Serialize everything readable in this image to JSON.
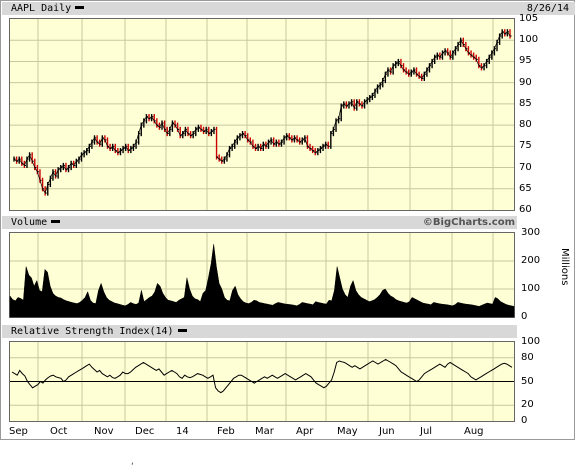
{
  "header": {
    "price_title": "AAPL Daily",
    "date": "8/26/14",
    "volume_title": "Volume",
    "brand": "©BigCharts.com",
    "rsi_title": "Relative Strength Index(14)",
    "volume_unit_label": "Millions",
    "footer_mark": "‘"
  },
  "chart_data": [
    {
      "type": "line",
      "panel": "price",
      "ylim": [
        60,
        105
      ],
      "yticks": [
        "105",
        "100",
        "95",
        "90",
        "85",
        "80",
        "75",
        "70",
        "65",
        "60"
      ],
      "x_labels": [
        "Sep",
        "Oct",
        "Nov",
        "Dec",
        "14",
        "Feb",
        "Mar",
        "Apr",
        "May",
        "Jun",
        "Jul",
        "Aug"
      ],
      "series": [
        {
          "values": [
            72,
            71.5,
            72,
            71,
            70.5,
            72,
            73,
            71.5,
            70,
            69,
            67,
            65,
            64,
            66,
            67.5,
            69,
            68,
            69.5,
            70,
            70.5,
            69.5,
            70,
            71,
            70.5,
            71.5,
            72,
            73,
            73.5,
            74,
            75,
            76,
            77,
            76,
            75.5,
            77,
            76.5,
            75,
            74.5,
            75,
            74,
            73.5,
            74,
            74.5,
            75,
            74,
            74.5,
            75,
            76,
            78,
            80,
            81,
            82,
            81.5,
            82,
            81,
            80,
            79.5,
            80.5,
            79,
            78,
            79,
            80.5,
            80,
            79,
            77.5,
            78,
            79,
            78,
            77.5,
            78,
            79,
            79.5,
            79,
            78.5,
            79,
            78,
            78.5,
            79,
            72.5,
            72,
            71.5,
            72,
            73,
            74.5,
            75,
            76,
            77,
            77.5,
            78,
            77.5,
            76.5,
            76,
            75,
            74.5,
            75,
            74.5,
            75.5,
            75,
            76,
            76.5,
            75.5,
            76,
            75.5,
            76,
            77,
            77.5,
            77,
            76.5,
            77,
            76.5,
            76,
            76.5,
            77,
            75,
            74.5,
            74,
            73.5,
            74,
            74.5,
            75,
            75.5,
            75,
            78,
            79,
            81,
            81.5,
            84.5,
            85,
            84.5,
            85,
            85.5,
            84,
            85.5,
            85,
            84.5,
            85.5,
            86,
            86.5,
            87,
            88,
            89,
            89.5,
            90.5,
            92,
            93,
            92.5,
            94,
            94.5,
            95,
            94,
            93,
            92.5,
            92,
            92.5,
            93,
            92,
            91.5,
            91,
            92,
            93,
            94,
            95,
            96,
            96.5,
            96,
            97,
            97.5,
            97,
            96,
            97,
            98,
            99,
            100,
            99,
            98,
            97,
            96.5,
            96,
            95.5,
            94,
            93.5,
            94,
            95,
            96,
            97,
            98,
            99.5,
            101,
            102,
            101.5,
            102,
            101
          ]
        }
      ]
    },
    {
      "type": "area",
      "panel": "volume",
      "ylabel": "Millions",
      "ylim": [
        0,
        300
      ],
      "yticks": [
        "300",
        "200",
        "100",
        "0"
      ],
      "series": [
        {
          "values": [
            75,
            62,
            58,
            70,
            66,
            60,
            180,
            150,
            140,
            110,
            130,
            95,
            90,
            170,
            160,
            110,
            85,
            75,
            70,
            68,
            62,
            58,
            55,
            52,
            50,
            48,
            52,
            60,
            70,
            90,
            60,
            50,
            48,
            95,
            120,
            90,
            70,
            60,
            55,
            50,
            48,
            45,
            42,
            40,
            45,
            52,
            48,
            45,
            50,
            95,
            55,
            62,
            70,
            75,
            90,
            120,
            110,
            85,
            70,
            60,
            58,
            55,
            52,
            60,
            65,
            70,
            140,
            100,
            75,
            65,
            62,
            55,
            85,
            95,
            140,
            190,
            260,
            180,
            120,
            100,
            70,
            60,
            58,
            95,
            110,
            80,
            65,
            55,
            50,
            48,
            52,
            60,
            58,
            52,
            50,
            48,
            46,
            44,
            42,
            48,
            52,
            50,
            48,
            46,
            45,
            44,
            42,
            40,
            45,
            52,
            50,
            48,
            46,
            44,
            55,
            52,
            50,
            48,
            46,
            60,
            58,
            95,
            180,
            140,
            100,
            80,
            70,
            110,
            130,
            95,
            80,
            70,
            65,
            60,
            55,
            58,
            62,
            70,
            80,
            95,
            100,
            85,
            75,
            70,
            62,
            58,
            55,
            52,
            50,
            55,
            70,
            65,
            60,
            55,
            50,
            48,
            46,
            44,
            52,
            50,
            48,
            46,
            45,
            44,
            42,
            40,
            44,
            52,
            50,
            48,
            46,
            45,
            44,
            42,
            40,
            38,
            42,
            46,
            50,
            48,
            46,
            70,
            65,
            55,
            50,
            45,
            42,
            40,
            38
          ]
        }
      ]
    },
    {
      "type": "line",
      "panel": "rsi",
      "ylim": [
        0,
        100
      ],
      "yticks": [
        "100",
        "80",
        "50",
        "20",
        "0"
      ],
      "reference_line": 50,
      "series": [
        {
          "values": [
            62,
            60,
            58,
            64,
            60,
            57,
            50,
            46,
            42,
            44,
            46,
            50,
            48,
            52,
            55,
            57,
            58,
            56,
            55,
            54,
            50,
            52,
            56,
            58,
            60,
            62,
            64,
            66,
            68,
            70,
            72,
            68,
            65,
            62,
            64,
            60,
            58,
            56,
            58,
            55,
            54,
            56,
            58,
            62,
            60,
            60,
            62,
            65,
            68,
            70,
            72,
            74,
            72,
            70,
            68,
            66,
            64,
            66,
            62,
            58,
            60,
            62,
            64,
            62,
            60,
            56,
            54,
            58,
            56,
            55,
            56,
            58,
            60,
            59,
            58,
            56,
            54,
            56,
            58,
            42,
            38,
            36,
            38,
            42,
            46,
            50,
            54,
            56,
            58,
            58,
            56,
            54,
            52,
            50,
            48,
            50,
            52,
            54,
            56,
            54,
            56,
            58,
            56,
            54,
            56,
            58,
            60,
            58,
            56,
            54,
            52,
            54,
            56,
            58,
            60,
            58,
            56,
            52,
            48,
            46,
            44,
            42,
            44,
            48,
            52,
            62,
            74,
            76,
            75,
            74,
            72,
            70,
            68,
            70,
            68,
            66,
            68,
            70,
            72,
            74,
            76,
            74,
            72,
            74,
            76,
            78,
            76,
            74,
            72,
            70,
            66,
            62,
            60,
            58,
            56,
            54,
            52,
            50,
            52,
            56,
            60,
            62,
            64,
            66,
            68,
            70,
            72,
            70,
            68,
            72,
            74,
            72,
            70,
            68,
            66,
            64,
            62,
            60,
            56,
            54,
            52,
            54,
            56,
            58,
            60,
            62,
            64,
            66,
            68,
            70,
            72,
            73,
            72,
            70,
            68
          ]
        }
      ]
    }
  ]
}
